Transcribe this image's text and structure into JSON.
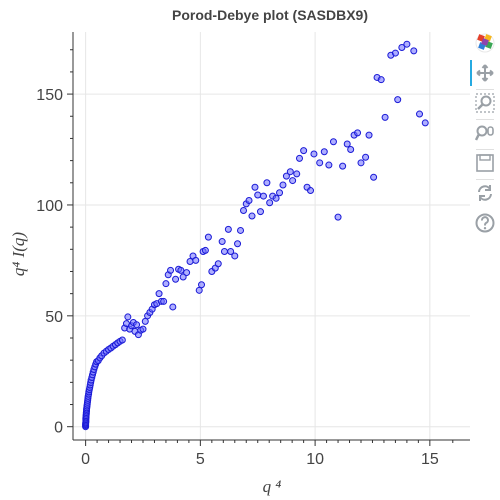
{
  "chart_data": {
    "type": "scatter",
    "title": "Porod-Debye plot (SASDBX9)",
    "xlabel": "q ⁴",
    "ylabel": "q⁴ I(q)",
    "xlim": [
      -0.55,
      16.75
    ],
    "ylim": [
      -6,
      178
    ],
    "xticks": [
      0,
      5,
      10,
      15
    ],
    "yticks": [
      0,
      50,
      100,
      150
    ],
    "grid": true,
    "marker": {
      "fill": "#6b6bff",
      "stroke": "#1a1ad6",
      "fill_opacity": 0.55
    },
    "points": [
      [
        0.0,
        0.0
      ],
      [
        0.0,
        0.5
      ],
      [
        0.0,
        1.0
      ],
      [
        0.0,
        1.5
      ],
      [
        0.01,
        2.0
      ],
      [
        0.01,
        2.6
      ],
      [
        0.01,
        3.2
      ],
      [
        0.01,
        3.8
      ],
      [
        0.02,
        4.4
      ],
      [
        0.02,
        5.0
      ],
      [
        0.03,
        5.7
      ],
      [
        0.03,
        6.4
      ],
      [
        0.04,
        7.1
      ],
      [
        0.04,
        7.8
      ],
      [
        0.05,
        8.5
      ],
      [
        0.06,
        9.3
      ],
      [
        0.07,
        10.1
      ],
      [
        0.08,
        11.0
      ],
      [
        0.09,
        11.9
      ],
      [
        0.1,
        12.8
      ],
      [
        0.11,
        13.7
      ],
      [
        0.13,
        14.7
      ],
      [
        0.14,
        15.7
      ],
      [
        0.16,
        16.7
      ],
      [
        0.18,
        17.7
      ],
      [
        0.2,
        18.8
      ],
      [
        0.22,
        19.9
      ],
      [
        0.24,
        21.0
      ],
      [
        0.27,
        22.2
      ],
      [
        0.3,
        23.4
      ],
      [
        0.33,
        24.6
      ],
      [
        0.36,
        25.8
      ],
      [
        0.4,
        27.0
      ],
      [
        0.44,
        28.2
      ],
      [
        0.48,
        29.3
      ],
      [
        0.55,
        29.8
      ],
      [
        0.62,
        31.0
      ],
      [
        0.7,
        32.0
      ],
      [
        0.8,
        33.2
      ],
      [
        0.9,
        34.0
      ],
      [
        1.0,
        34.8
      ],
      [
        1.1,
        35.5
      ],
      [
        1.2,
        36.3
      ],
      [
        1.3,
        37.0
      ],
      [
        1.4,
        37.8
      ],
      [
        1.5,
        38.5
      ],
      [
        1.6,
        39.1
      ],
      [
        1.7,
        44.5
      ],
      [
        1.78,
        46.5
      ],
      [
        1.84,
        49.5
      ],
      [
        1.92,
        44.0
      ],
      [
        2.0,
        45.5
      ],
      [
        2.08,
        47.0
      ],
      [
        2.15,
        43.0
      ],
      [
        2.22,
        46.0
      ],
      [
        2.3,
        41.5
      ],
      [
        2.4,
        43.5
      ],
      [
        2.5,
        44.0
      ],
      [
        2.6,
        47.5
      ],
      [
        2.7,
        50.0
      ],
      [
        2.8,
        51.5
      ],
      [
        2.9,
        53.0
      ],
      [
        3.0,
        55.0
      ],
      [
        3.1,
        55.5
      ],
      [
        3.2,
        60.0
      ],
      [
        3.3,
        56.5
      ],
      [
        3.4,
        56.5
      ],
      [
        3.5,
        64.5
      ],
      [
        3.6,
        68.5
      ],
      [
        3.7,
        70.5
      ],
      [
        3.8,
        54.0
      ],
      [
        3.92,
        66.5
      ],
      [
        4.05,
        71.0
      ],
      [
        4.15,
        70.5
      ],
      [
        4.25,
        67.5
      ],
      [
        4.4,
        69.5
      ],
      [
        4.55,
        74.5
      ],
      [
        4.68,
        77.0
      ],
      [
        4.8,
        75.0
      ],
      [
        4.95,
        61.5
      ],
      [
        5.05,
        64.0
      ],
      [
        5.12,
        79.0
      ],
      [
        5.22,
        79.5
      ],
      [
        5.35,
        85.5
      ],
      [
        5.5,
        70.0
      ],
      [
        5.65,
        71.5
      ],
      [
        5.78,
        73.5
      ],
      [
        5.95,
        83.5
      ],
      [
        6.05,
        79.0
      ],
      [
        6.22,
        89.0
      ],
      [
        6.32,
        79.0
      ],
      [
        6.5,
        77.0
      ],
      [
        6.62,
        82.5
      ],
      [
        6.75,
        88.5
      ],
      [
        6.88,
        97.5
      ],
      [
        7.0,
        100.5
      ],
      [
        7.12,
        102.0
      ],
      [
        7.25,
        95.0
      ],
      [
        7.38,
        108.0
      ],
      [
        7.5,
        104.5
      ],
      [
        7.62,
        97.0
      ],
      [
        7.75,
        104.0
      ],
      [
        7.9,
        110.0
      ],
      [
        8.02,
        101.0
      ],
      [
        8.15,
        104.0
      ],
      [
        8.3,
        103.0
      ],
      [
        8.45,
        105.5
      ],
      [
        8.6,
        109.0
      ],
      [
        8.75,
        113.0
      ],
      [
        8.92,
        115.0
      ],
      [
        9.02,
        111.0
      ],
      [
        9.2,
        114.0
      ],
      [
        9.32,
        121.0
      ],
      [
        9.5,
        124.5
      ],
      [
        9.65,
        108.0
      ],
      [
        9.8,
        106.5
      ],
      [
        9.95,
        123.0
      ],
      [
        10.2,
        119.0
      ],
      [
        10.4,
        124.0
      ],
      [
        10.6,
        118.0
      ],
      [
        10.8,
        128.5
      ],
      [
        11.0,
        94.5
      ],
      [
        11.2,
        117.5
      ],
      [
        11.4,
        127.5
      ],
      [
        11.55,
        125.0
      ],
      [
        11.7,
        131.5
      ],
      [
        11.85,
        132.5
      ],
      [
        12.0,
        119.0
      ],
      [
        12.2,
        121.5
      ],
      [
        12.35,
        131.5
      ],
      [
        12.55,
        112.5
      ],
      [
        12.7,
        157.5
      ],
      [
        12.88,
        156.5
      ],
      [
        13.05,
        139.5
      ],
      [
        13.3,
        167.5
      ],
      [
        13.5,
        168.5
      ],
      [
        13.6,
        147.5
      ],
      [
        13.78,
        171.0
      ],
      [
        14.0,
        172.5
      ],
      [
        14.3,
        169.5
      ],
      [
        14.55,
        141.0
      ],
      [
        14.8,
        137.0
      ]
    ]
  },
  "toolbar": [
    {
      "name": "bokeh-logo-icon",
      "interactable": false
    },
    {
      "name": "pan-tool-icon",
      "interactable": true
    },
    {
      "name": "box-zoom-tool-icon",
      "interactable": true
    },
    {
      "name": "wheel-zoom-tool-icon",
      "interactable": true
    },
    {
      "name": "save-tool-icon",
      "interactable": true
    },
    {
      "name": "reset-tool-icon",
      "interactable": true
    },
    {
      "name": "help-tool-icon",
      "interactable": true
    }
  ]
}
